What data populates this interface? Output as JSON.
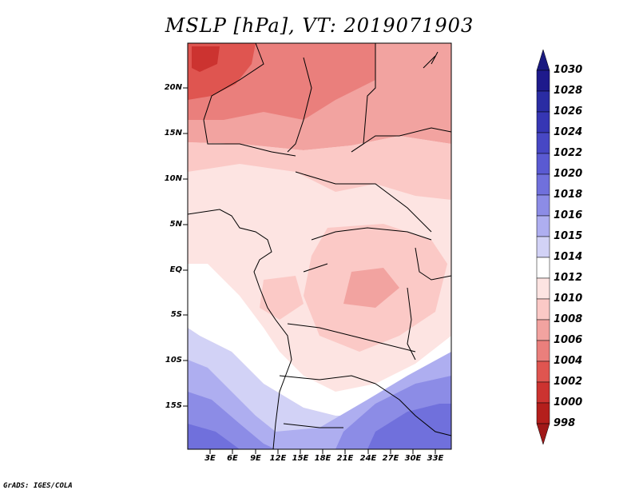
{
  "title": "MSLP [hPa], VT: 2019071903",
  "lat_labels": [
    "20N",
    "15N",
    "10N",
    "5N",
    "EQ",
    "5S",
    "10S",
    "15S"
  ],
  "lon_labels": [
    "3E",
    "6E",
    "9E",
    "12E",
    "15E",
    "18E",
    "21E",
    "24E",
    "27E",
    "30E",
    "33E"
  ],
  "colorbar": {
    "labels": [
      "1030",
      "1028",
      "1026",
      "1024",
      "1022",
      "1020",
      "1018",
      "1016",
      "1015",
      "1014",
      "1012",
      "1010",
      "1008",
      "1006",
      "1004",
      "1002",
      "1000",
      "998"
    ],
    "colors": [
      "#1e1a8c",
      "#2a2ca3",
      "#3636b4",
      "#4747c4",
      "#5a5ad2",
      "#7070dc",
      "#8c8ce6",
      "#aeaef0",
      "#d2d2f6",
      "#ffffff",
      "#fde4e2",
      "#fbc9c6",
      "#f2a3a0",
      "#ea7f7c",
      "#df5550",
      "#cc3330",
      "#b41f1c"
    ],
    "top_color": "#1a1a80",
    "bottom_color": "#a01818"
  },
  "credit": "GrADS: IGES/COLA"
}
